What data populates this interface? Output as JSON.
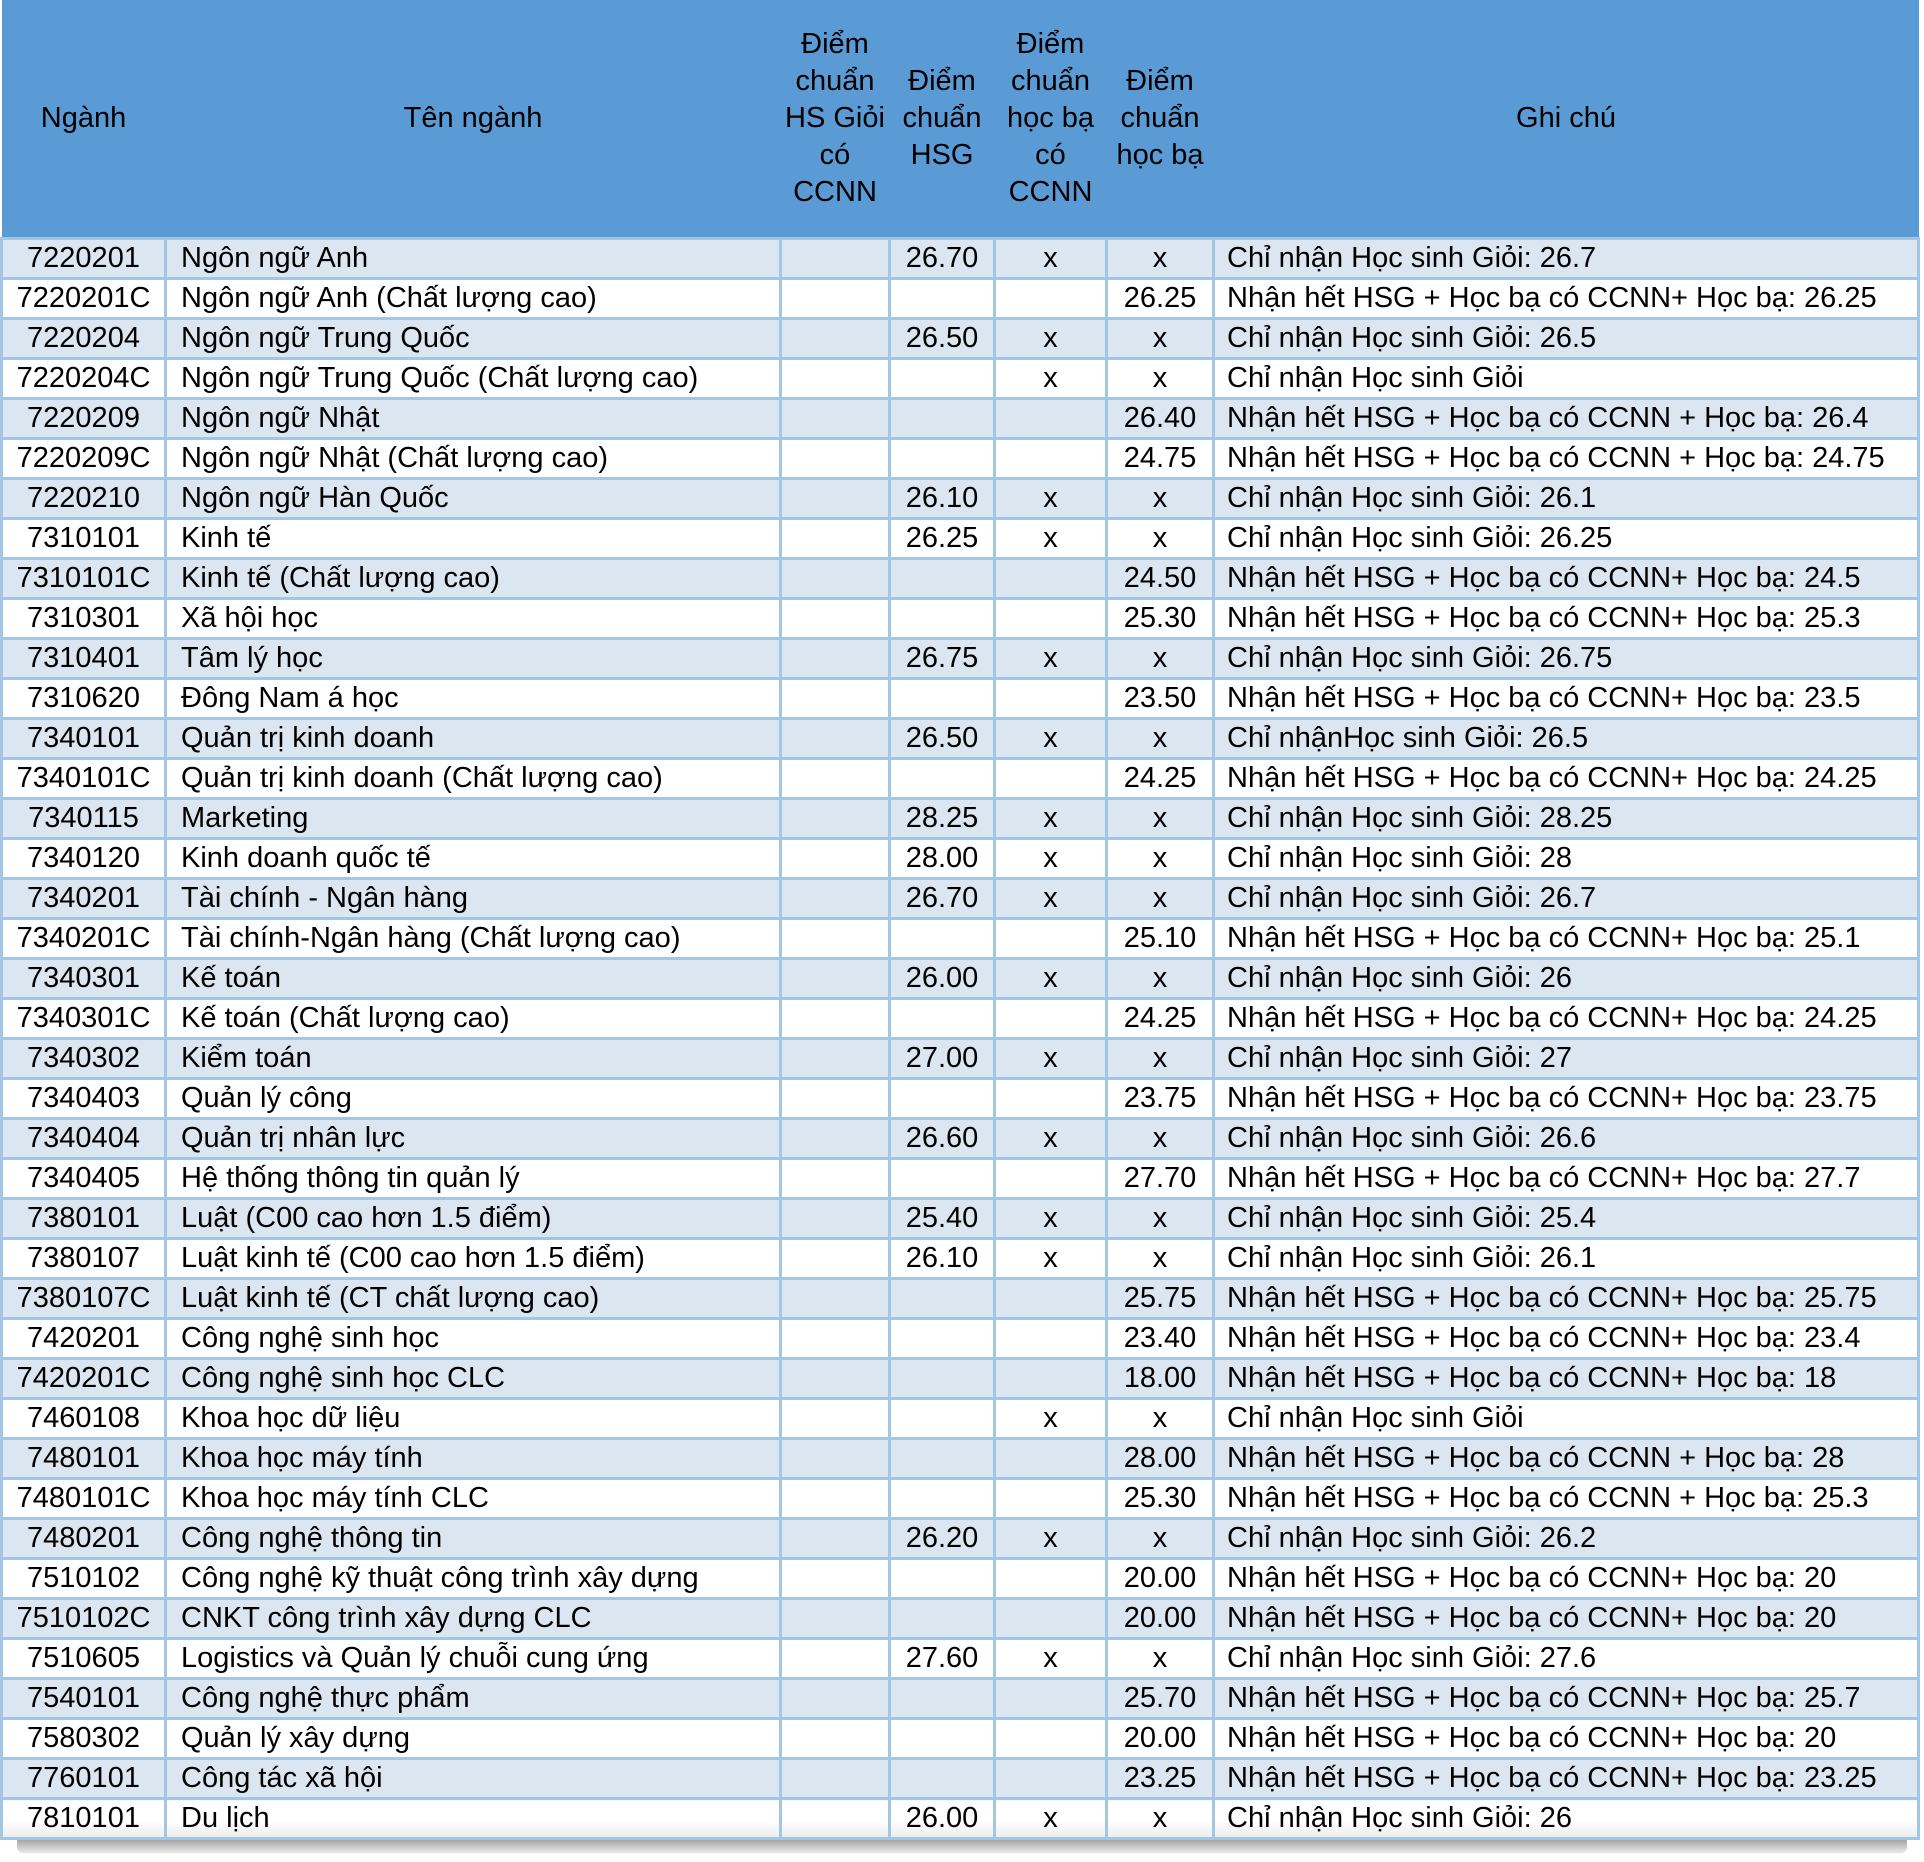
{
  "colors": {
    "header_bg": "#5b9bd5",
    "alt_row_bg": "#dce6f1",
    "row_bg": "#ffffff",
    "grid_border": "#a3c6e4",
    "text": "#000000",
    "bottom_shadow": "#a6a6a6"
  },
  "header": {
    "columns": [
      {
        "key": "code",
        "label": "Ngành"
      },
      {
        "key": "name",
        "label": "Tên ngành"
      },
      {
        "key": "hsg_ccnn",
        "label": "Điểm chuẩn HS Giỏi có CCNN"
      },
      {
        "key": "hsg",
        "label": "Điểm chuẩn HSG"
      },
      {
        "key": "hocba_ccnn",
        "label": "Điểm chuẩn học bạ có CCNN"
      },
      {
        "key": "hocba",
        "label": "Điểm chuẩn học bạ"
      },
      {
        "key": "note",
        "label": "Ghi chú"
      }
    ]
  },
  "rows": [
    {
      "code": "7220201",
      "name": "Ngôn ngữ Anh",
      "hsg_ccnn": "",
      "hsg": "26.70",
      "hocba_ccnn": "x",
      "hocba": "x",
      "note": "Chỉ nhận Học sinh Giỏi: 26.7"
    },
    {
      "code": "7220201C",
      "name": "Ngôn ngữ Anh (Chất lượng cao)",
      "hsg_ccnn": "",
      "hsg": "",
      "hocba_ccnn": "",
      "hocba": "26.25",
      "note": "Nhận hết HSG + Học bạ có CCNN+ Học bạ: 26.25"
    },
    {
      "code": "7220204",
      "name": "Ngôn ngữ Trung Quốc",
      "hsg_ccnn": "",
      "hsg": "26.50",
      "hocba_ccnn": "x",
      "hocba": "x",
      "note": "Chỉ nhận Học sinh Giỏi: 26.5"
    },
    {
      "code": "7220204C",
      "name": "Ngôn ngữ Trung Quốc (Chất lượng cao)",
      "hsg_ccnn": "",
      "hsg": "",
      "hocba_ccnn": "x",
      "hocba": "x",
      "note": "Chỉ nhận Học sinh Giỏi"
    },
    {
      "code": "7220209",
      "name": "Ngôn ngữ Nhật",
      "hsg_ccnn": "",
      "hsg": "",
      "hocba_ccnn": "",
      "hocba": "26.40",
      "note": "Nhận hết HSG + Học bạ có CCNN + Học bạ: 26.4"
    },
    {
      "code": "7220209C",
      "name": "Ngôn ngữ Nhật  (Chất lượng cao)",
      "hsg_ccnn": "",
      "hsg": "",
      "hocba_ccnn": "",
      "hocba": "24.75",
      "note": "Nhận hết HSG + Học bạ có CCNN + Học bạ: 24.75"
    },
    {
      "code": "7220210",
      "name": "Ngôn ngữ Hàn Quốc",
      "hsg_ccnn": "",
      "hsg": "26.10",
      "hocba_ccnn": "x",
      "hocba": "x",
      "note": "Chỉ nhận Học sinh Giỏi: 26.1"
    },
    {
      "code": "7310101",
      "name": "Kinh tế",
      "hsg_ccnn": "",
      "hsg": "26.25",
      "hocba_ccnn": "x",
      "hocba": "x",
      "note": "Chỉ nhận Học sinh Giỏi: 26.25"
    },
    {
      "code": "7310101C",
      "name": "Kinh tế (Chất lượng cao)",
      "hsg_ccnn": "",
      "hsg": "",
      "hocba_ccnn": "",
      "hocba": "24.50",
      "note": "Nhận hết HSG + Học bạ có CCNN+ Học bạ: 24.5"
    },
    {
      "code": "7310301",
      "name": "Xã hội học",
      "hsg_ccnn": "",
      "hsg": "",
      "hocba_ccnn": "",
      "hocba": "25.30",
      "note": "Nhận hết HSG + Học bạ có CCNN+ Học bạ: 25.3"
    },
    {
      "code": "7310401",
      "name": "Tâm lý học",
      "hsg_ccnn": "",
      "hsg": "26.75",
      "hocba_ccnn": "x",
      "hocba": "x",
      "note": "Chỉ nhận Học sinh Giỏi: 26.75"
    },
    {
      "code": "7310620",
      "name": "Đông Nam á học",
      "hsg_ccnn": "",
      "hsg": "",
      "hocba_ccnn": "",
      "hocba": "23.50",
      "note": "Nhận hết HSG + Học bạ có CCNN+ Học bạ: 23.5"
    },
    {
      "code": "7340101",
      "name": "Quản trị kinh doanh",
      "hsg_ccnn": "",
      "hsg": "26.50",
      "hocba_ccnn": "x",
      "hocba": "x",
      "note": "Chỉ nhậnHọc sinh Giỏi: 26.5"
    },
    {
      "code": "7340101C",
      "name": "Quản trị kinh doanh (Chất lượng cao)",
      "hsg_ccnn": "",
      "hsg": "",
      "hocba_ccnn": "",
      "hocba": "24.25",
      "note": "Nhận hết HSG + Học bạ có CCNN+ Học bạ: 24.25"
    },
    {
      "code": "7340115",
      "name": "Marketing",
      "hsg_ccnn": "",
      "hsg": "28.25",
      "hocba_ccnn": "x",
      "hocba": "x",
      "note": "Chỉ nhận Học sinh Giỏi: 28.25"
    },
    {
      "code": "7340120",
      "name": "Kinh doanh quốc tế",
      "hsg_ccnn": "",
      "hsg": "28.00",
      "hocba_ccnn": "x",
      "hocba": "x",
      "note": "Chỉ nhận Học sinh Giỏi: 28"
    },
    {
      "code": "7340201",
      "name": "Tài chính - Ngân hàng",
      "hsg_ccnn": "",
      "hsg": "26.70",
      "hocba_ccnn": "x",
      "hocba": "x",
      "note": "Chỉ nhận Học sinh Giỏi: 26.7"
    },
    {
      "code": "7340201C",
      "name": "Tài chính-Ngân hàng (Chất lượng cao)",
      "hsg_ccnn": "",
      "hsg": "",
      "hocba_ccnn": "",
      "hocba": "25.10",
      "note": "Nhận hết HSG + Học bạ có CCNN+ Học bạ: 25.1"
    },
    {
      "code": "7340301",
      "name": "Kế toán",
      "hsg_ccnn": "",
      "hsg": "26.00",
      "hocba_ccnn": "x",
      "hocba": "x",
      "note": "Chỉ nhận Học sinh Giỏi: 26"
    },
    {
      "code": "7340301C",
      "name": "Kế toán (Chất lượng cao)",
      "hsg_ccnn": "",
      "hsg": "",
      "hocba_ccnn": "",
      "hocba": "24.25",
      "note": "Nhận hết HSG + Học bạ có CCNN+ Học bạ: 24.25"
    },
    {
      "code": "7340302",
      "name": "Kiểm toán",
      "hsg_ccnn": "",
      "hsg": "27.00",
      "hocba_ccnn": "x",
      "hocba": "x",
      "note": "Chỉ nhận Học sinh Giỏi: 27"
    },
    {
      "code": "7340403",
      "name": "Quản lý công",
      "hsg_ccnn": "",
      "hsg": "",
      "hocba_ccnn": "",
      "hocba": "23.75",
      "note": "Nhận hết HSG + Học bạ có CCNN+ Học bạ: 23.75"
    },
    {
      "code": "7340404",
      "name": "Quản trị nhân lực",
      "hsg_ccnn": "",
      "hsg": "26.60",
      "hocba_ccnn": "x",
      "hocba": "x",
      "note": "Chỉ nhận Học sinh Giỏi: 26.6"
    },
    {
      "code": "7340405",
      "name": "Hệ thống thông tin quản lý",
      "hsg_ccnn": "",
      "hsg": "",
      "hocba_ccnn": "",
      "hocba": "27.70",
      "note": "Nhận hết HSG + Học bạ có CCNN+ Học bạ: 27.7"
    },
    {
      "code": "7380101",
      "name": "Luật (C00 cao hơn 1.5 điểm)",
      "hsg_ccnn": "",
      "hsg": "25.40",
      "hocba_ccnn": "x",
      "hocba": "x",
      "note": "Chỉ nhận Học sinh Giỏi: 25.4"
    },
    {
      "code": "7380107",
      "name": "Luật kinh tế (C00 cao hơn 1.5 điểm)",
      "hsg_ccnn": "",
      "hsg": "26.10",
      "hocba_ccnn": "x",
      "hocba": "x",
      "note": "Chỉ nhận Học sinh Giỏi: 26.1"
    },
    {
      "code": "7380107C",
      "name": "Luật kinh tế (CT chất lượng cao)",
      "hsg_ccnn": "",
      "hsg": "",
      "hocba_ccnn": "",
      "hocba": "25.75",
      "note": "Nhận hết HSG + Học bạ có CCNN+ Học bạ: 25.75"
    },
    {
      "code": "7420201",
      "name": "Công nghệ sinh học",
      "hsg_ccnn": "",
      "hsg": "",
      "hocba_ccnn": "",
      "hocba": "23.40",
      "note": "Nhận hết HSG + Học bạ có CCNN+ Học bạ: 23.4"
    },
    {
      "code": "7420201C",
      "name": "Công nghệ sinh học CLC",
      "hsg_ccnn": "",
      "hsg": "",
      "hocba_ccnn": "",
      "hocba": "18.00",
      "note": "Nhận hết HSG + Học bạ có CCNN+ Học bạ: 18"
    },
    {
      "code": "7460108",
      "name": "Khoa học dữ liệu",
      "hsg_ccnn": "",
      "hsg": "",
      "hocba_ccnn": "x",
      "hocba": "x",
      "note": "Chỉ nhận Học sinh Giỏi"
    },
    {
      "code": "7480101",
      "name": "Khoa học máy tính",
      "hsg_ccnn": "",
      "hsg": "",
      "hocba_ccnn": "",
      "hocba": "28.00",
      "note": "Nhận hết HSG + Học bạ có CCNN + Học bạ: 28"
    },
    {
      "code": "7480101C",
      "name": "Khoa học máy tính CLC",
      "hsg_ccnn": "",
      "hsg": "",
      "hocba_ccnn": "",
      "hocba": "25.30",
      "note": "Nhận hết HSG + Học bạ có CCNN + Học bạ: 25.3"
    },
    {
      "code": "7480201",
      "name": "Công nghệ thông tin",
      "hsg_ccnn": "",
      "hsg": "26.20",
      "hocba_ccnn": "x",
      "hocba": "x",
      "note": "Chỉ nhận Học sinh Giỏi: 26.2"
    },
    {
      "code": "7510102",
      "name": "Công nghệ kỹ thuật công trình xây dựng",
      "hsg_ccnn": "",
      "hsg": "",
      "hocba_ccnn": "",
      "hocba": "20.00",
      "note": "Nhận hết HSG + Học bạ có CCNN+ Học bạ: 20"
    },
    {
      "code": "7510102C",
      "name": "CNKT công trình xây dựng CLC",
      "hsg_ccnn": "",
      "hsg": "",
      "hocba_ccnn": "",
      "hocba": "20.00",
      "note": "Nhận hết HSG + Học bạ có CCNN+ Học bạ: 20"
    },
    {
      "code": "7510605",
      "name": "Logistics và Quản lý chuỗi cung ứng",
      "hsg_ccnn": "",
      "hsg": "27.60",
      "hocba_ccnn": "x",
      "hocba": "x",
      "note": "Chỉ nhận Học sinh Giỏi: 27.6"
    },
    {
      "code": "7540101",
      "name": "Công nghệ thực phẩm",
      "hsg_ccnn": "",
      "hsg": "",
      "hocba_ccnn": "",
      "hocba": "25.70",
      "note": "Nhận hết HSG + Học bạ có CCNN+ Học bạ: 25.7"
    },
    {
      "code": "7580302",
      "name": "Quản lý xây dựng",
      "hsg_ccnn": "",
      "hsg": "",
      "hocba_ccnn": "",
      "hocba": "20.00",
      "note": "Nhận hết HSG + Học bạ có CCNN+ Học bạ: 20"
    },
    {
      "code": "7760101",
      "name": "Công tác xã hội",
      "hsg_ccnn": "",
      "hsg": "",
      "hocba_ccnn": "",
      "hocba": "23.25",
      "note": "Nhận hết HSG + Học bạ có CCNN+ Học bạ: 23.25"
    },
    {
      "code": "7810101",
      "name": "Du lịch",
      "hsg_ccnn": "",
      "hsg": "26.00",
      "hocba_ccnn": "x",
      "hocba": "x",
      "note": "Chỉ nhận Học sinh Giỏi: 26"
    }
  ]
}
